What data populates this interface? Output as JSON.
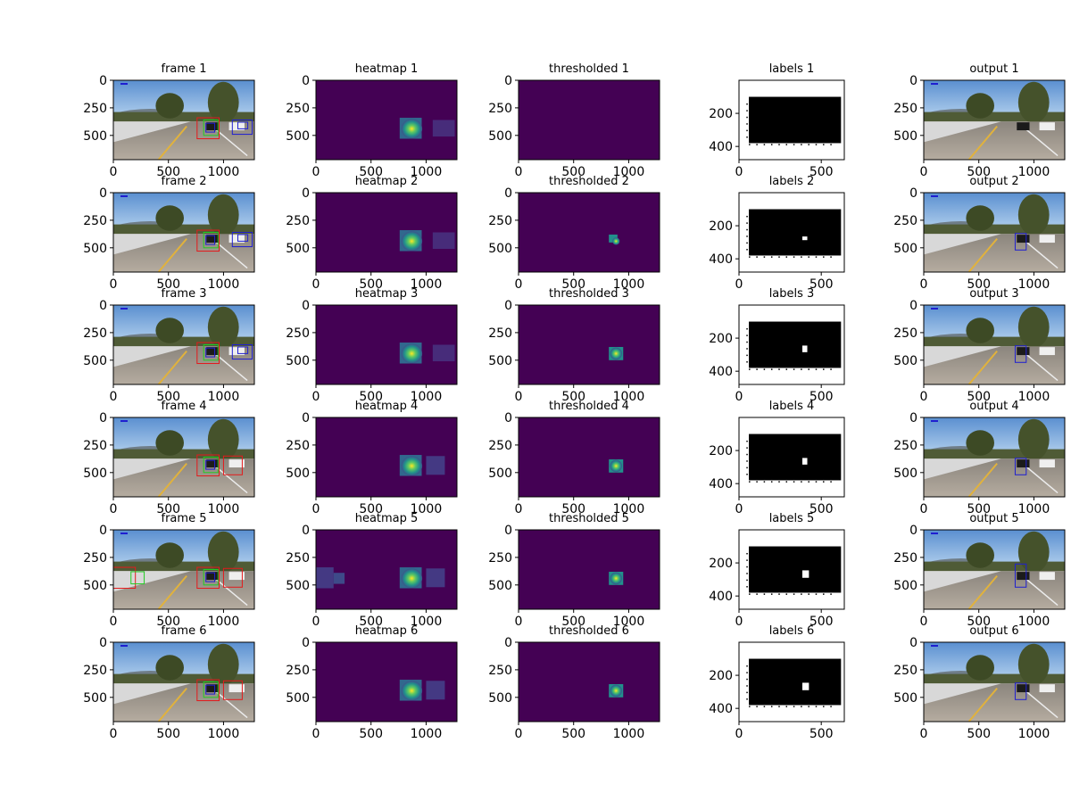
{
  "figure": {
    "rows": 6,
    "cols": 5
  },
  "chart_data": {
    "type": "image-grid",
    "columns": [
      {
        "kind": "frame",
        "titles": [
          "frame 1",
          "frame 2",
          "frame 3",
          "frame 4",
          "frame 5",
          "frame 6"
        ],
        "xlim": [
          0,
          1280
        ],
        "ylim": [
          720,
          0
        ],
        "xticks": [
          0,
          500,
          1000
        ],
        "xtick_labels": [
          "0",
          "500",
          "1000"
        ],
        "yticks": [
          0,
          250,
          500
        ],
        "ytick_labels": [
          "0",
          "250",
          "500"
        ],
        "image": "road scene with sliding-window detection boxes"
      },
      {
        "kind": "heatmap",
        "titles": [
          "heatmap 1",
          "heatmap 2",
          "heatmap 3",
          "heatmap 4",
          "heatmap 5",
          "heatmap 6"
        ],
        "xlim": [
          0,
          1280
        ],
        "ylim": [
          720,
          0
        ],
        "xticks": [
          0,
          500,
          1000
        ],
        "xtick_labels": [
          "0",
          "500",
          "1000"
        ],
        "yticks": [
          0,
          250,
          500
        ],
        "ytick_labels": [
          "0",
          "250",
          "500"
        ],
        "colormap": "viridis"
      },
      {
        "kind": "thresholded",
        "titles": [
          "thresholded 1",
          "thresholded 2",
          "thresholded 3",
          "thresholded 4",
          "thresholded 5",
          "thresholded 6"
        ],
        "xlim": [
          0,
          1280
        ],
        "ylim": [
          720,
          0
        ],
        "xticks": [
          0,
          500,
          1000
        ],
        "xtick_labels": [
          "0",
          "500",
          "1000"
        ],
        "yticks": [
          0,
          250,
          500
        ],
        "ytick_labels": [
          "0",
          "250",
          "500"
        ],
        "colormap": "viridis"
      },
      {
        "kind": "labels",
        "titles": [
          "labels 1",
          "labels 2",
          "labels 3",
          "labels 4",
          "labels 5",
          "labels 6"
        ],
        "xlim": [
          0,
          640
        ],
        "ylim": [
          480,
          0
        ],
        "xticks": [
          0,
          500
        ],
        "xtick_labels": [
          "0",
          "500"
        ],
        "yticks": [
          200,
          400
        ],
        "ytick_labels": [
          "200",
          "400"
        ],
        "image": "black rectangle with white labeled blob"
      },
      {
        "kind": "output",
        "titles": [
          "output 1",
          "output 2",
          "output 3",
          "output 4",
          "output 5",
          "output 6"
        ],
        "xlim": [
          0,
          1280
        ],
        "ylim": [
          720,
          0
        ],
        "xticks": [
          0,
          500,
          1000
        ],
        "xtick_labels": [
          "0",
          "500",
          "1000"
        ],
        "yticks": [
          0,
          250,
          500
        ],
        "ytick_labels": [
          "0",
          "250",
          "500"
        ],
        "image": "road scene with final bounding box"
      }
    ],
    "colors": {
      "viridis_low": "#440154",
      "viridis_mid": "#21918c",
      "viridis_high": "#fde725",
      "box_red": "#e41a1c",
      "box_green": "#22cc22",
      "box_blue": "#1f1fd0",
      "labels_black": "#000000",
      "labels_white": "#ffffff"
    }
  }
}
